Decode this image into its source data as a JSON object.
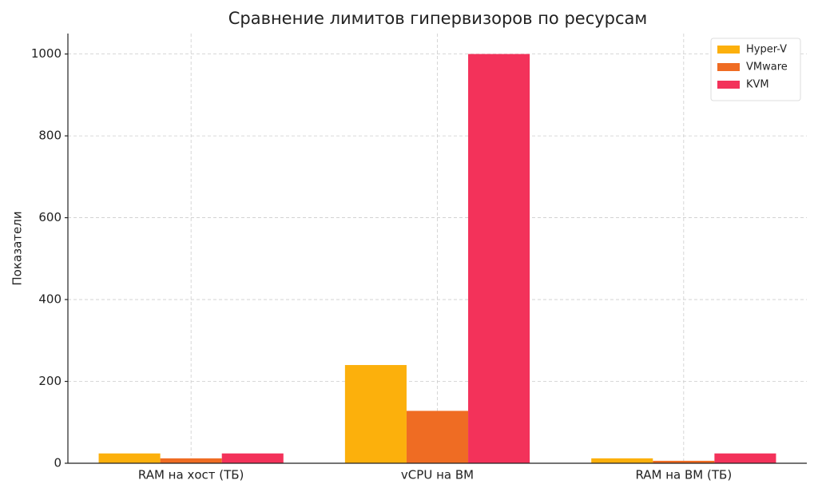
{
  "chart_data": {
    "type": "bar",
    "title": "Сравнение лимитов гипервизоров по ресурсам",
    "y_label": "Показатели",
    "categories": [
      "RAM на хост (ТБ)",
      "vCPU на ВМ",
      "RAM на ВМ (ТБ)"
    ],
    "series": [
      {
        "name": "Hyper-V",
        "color": "#fcb00c",
        "values": [
          24,
          240,
          12
        ]
      },
      {
        "name": "VMware",
        "color": "#ef6c23",
        "values": [
          12,
          128,
          6
        ]
      },
      {
        "name": "KVM",
        "color": "#f3325a",
        "values": [
          24,
          1000,
          24
        ]
      }
    ],
    "ylim": [
      0,
      1050
    ],
    "yticks": [
      0,
      200,
      400,
      600,
      800,
      1000
    ],
    "grid": true,
    "legend": "upper right"
  }
}
